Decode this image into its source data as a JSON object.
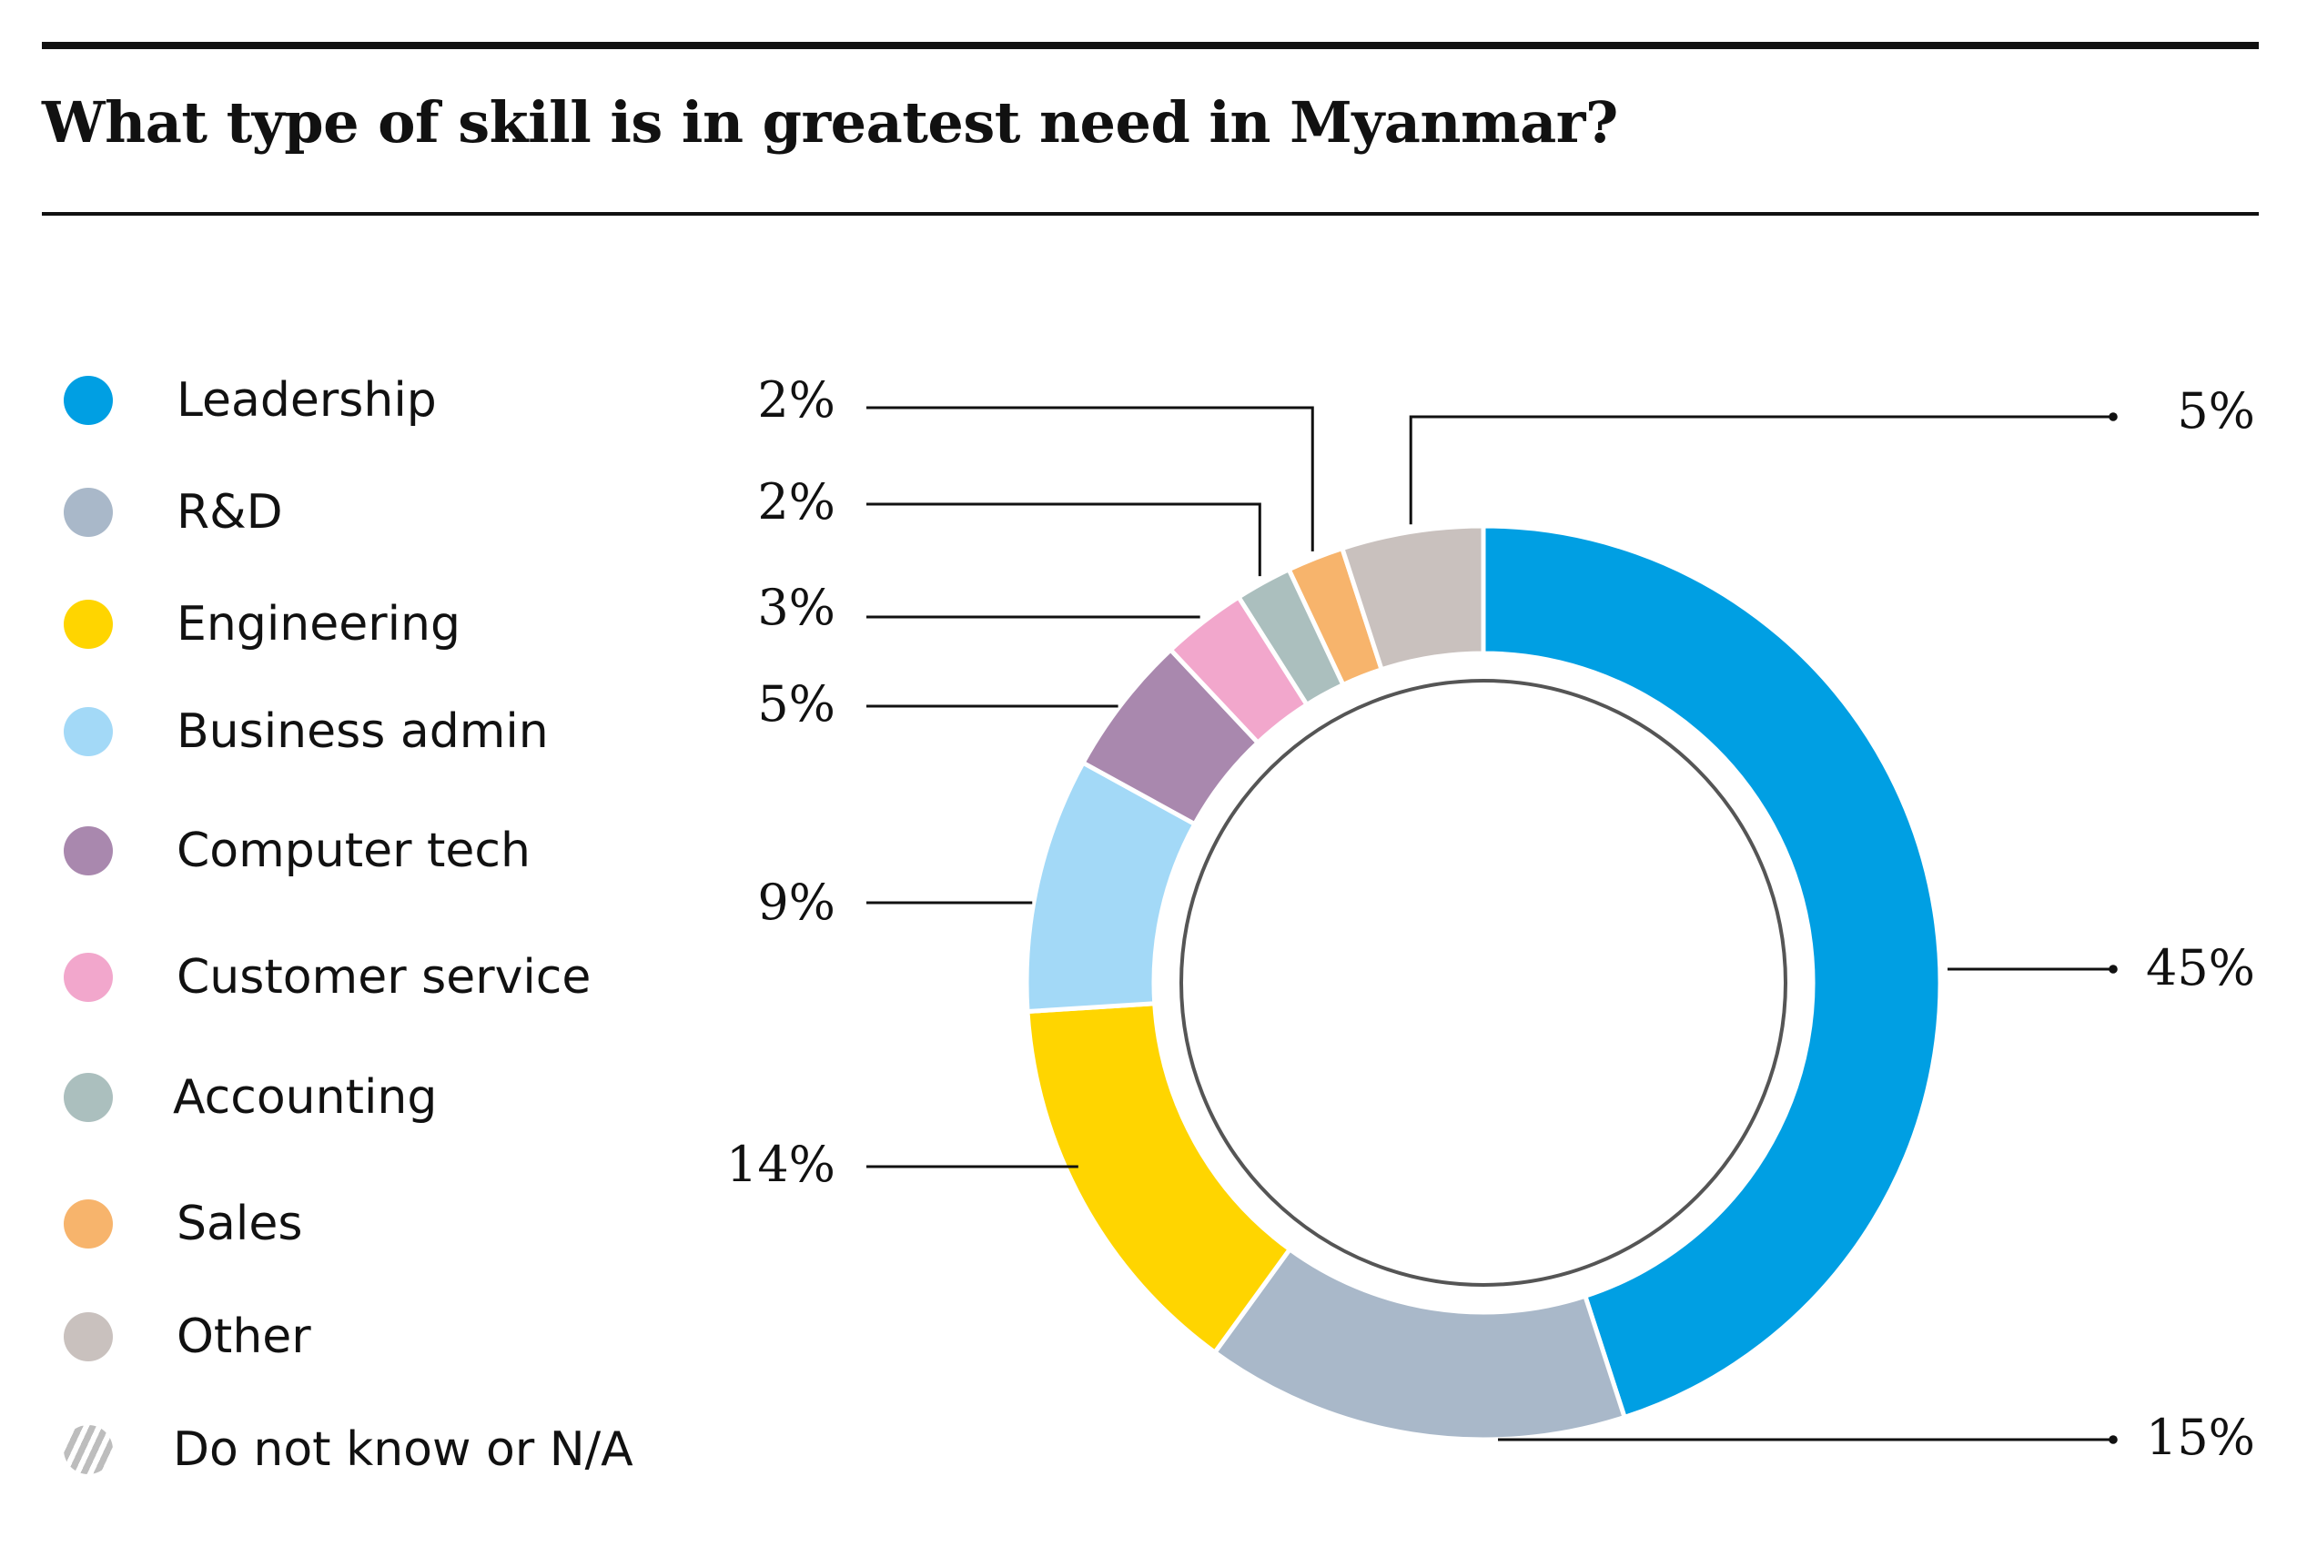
{
  "title": "What type of skill is in greatest need in Myanmar?",
  "legend": [
    {
      "label": "Leadership",
      "color": "#009FE3"
    },
    {
      "label": "R&D",
      "color": "#A9B8C9"
    },
    {
      "label": "Engineering",
      "color": "#FFD500"
    },
    {
      "label": "Business admin",
      "color": "#A3D9F7"
    },
    {
      "label": "Computer tech",
      "color": "#A988AE"
    },
    {
      "label": "Customer service",
      "color": "#F2A7CC"
    },
    {
      "label": "Accounting",
      "color": "#ABBFBE"
    },
    {
      "label": "Sales",
      "color": "#F7B46C"
    },
    {
      "label": "Other",
      "color": "#C9C1BE"
    },
    {
      "label": "Do not know or N/A",
      "color": "hatch-gray"
    }
  ],
  "chart_data": {
    "type": "pie",
    "style": "donut",
    "title": "What type of skill is in greatest need in Myanmar?",
    "categories": [
      "Leadership",
      "R&D",
      "Engineering",
      "Business admin",
      "Computer tech",
      "Customer service",
      "Accounting",
      "Sales",
      "Other"
    ],
    "values": [
      45,
      15,
      14,
      9,
      5,
      3,
      2,
      2,
      5
    ],
    "labels": [
      "45%",
      "15%",
      "14%",
      "9%",
      "5%",
      "3%",
      "2%",
      "2%",
      "5%"
    ],
    "colors": [
      "#009FE3",
      "#A9B8C9",
      "#FFD500",
      "#A3D9F7",
      "#A988AE",
      "#F2A7CC",
      "#ABBFBE",
      "#F7B46C",
      "#C9C1BE"
    ],
    "start_angle_deg": 0,
    "direction": "clockwise",
    "legend_position": "left"
  }
}
